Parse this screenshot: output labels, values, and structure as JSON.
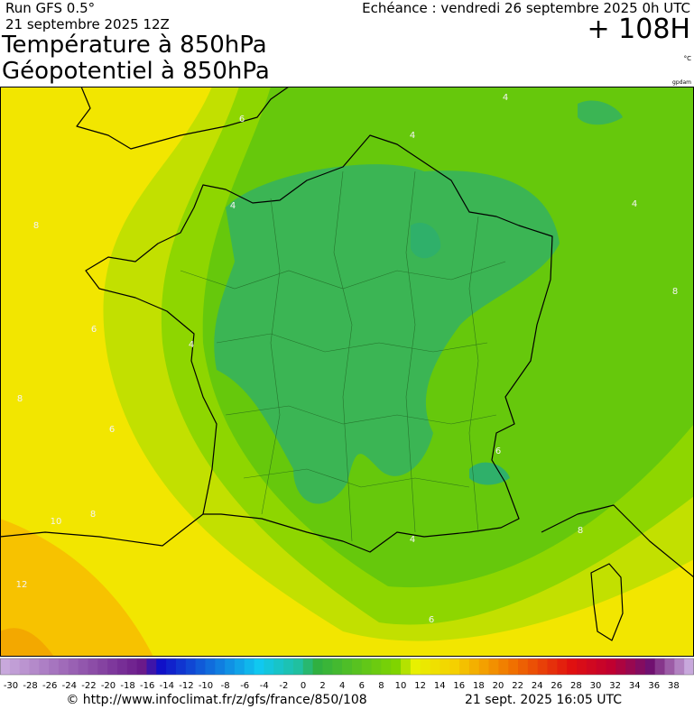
{
  "header": {
    "run": "Run GFS 0.5°",
    "date": "21 septembre 2025 12Z",
    "title1": "Température à 850hPa",
    "title2": "Géopotentiel à 850hPa",
    "echeance": "Echéance : vendredi 26 septembre 2025 0h UTC",
    "lead": "+ 108H",
    "unit": "°C",
    "credit": "gpdam"
  },
  "map": {
    "contour_labels": [
      "6",
      "4",
      "4",
      "4",
      "4",
      "8",
      "6",
      "4",
      "8",
      "6",
      "8",
      "10",
      "12",
      "4",
      "6",
      "8",
      "6",
      "8"
    ]
  },
  "scale": {
    "labels": [
      -30,
      -28,
      -26,
      -24,
      -22,
      -20,
      -18,
      -16,
      -14,
      -12,
      -10,
      -8,
      -6,
      -4,
      -2,
      0,
      2,
      4,
      6,
      8,
      10,
      12,
      14,
      16,
      18,
      20,
      22,
      24,
      26,
      28,
      30,
      32,
      34,
      36,
      38
    ]
  },
  "footer": {
    "url": "© http://www.infoclimat.fr/z/gfs/france/850/108",
    "timestamp": "21 sept. 2025 16:05 UTC"
  }
}
